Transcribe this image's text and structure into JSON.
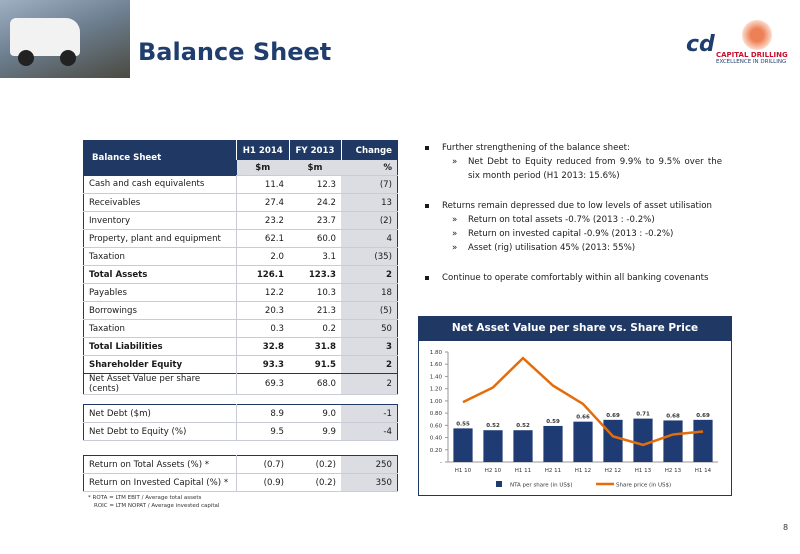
{
  "header": {
    "title": "Balance Sheet",
    "logo_mark": "cd",
    "logo_name": "CAPITAL DRILLING",
    "logo_tagline": "EXCELLENCE IN DRILLING"
  },
  "table": {
    "header": [
      "Balance Sheet",
      "H1 2014",
      "FY 2013",
      "Change"
    ],
    "units": [
      "$m",
      "$m",
      "%"
    ],
    "sections": [
      [
        [
          "Cash and cash equivalents",
          "11.4",
          "12.3",
          "(7)"
        ],
        [
          "Receivables",
          "27.4",
          "24.2",
          "13"
        ],
        [
          "Inventory",
          "23.2",
          "23.7",
          "(2)"
        ],
        [
          "Property, plant and equipment",
          "62.1",
          "60.0",
          "4"
        ],
        [
          "Taxation",
          "2.0",
          "3.1",
          "(35)"
        ],
        [
          "Total Assets",
          "126.1",
          "123.3",
          "2"
        ],
        [
          "Payables",
          "12.2",
          "10.3",
          "18"
        ],
        [
          "Borrowings",
          "20.3",
          "21.3",
          "(5)"
        ],
        [
          "Taxation",
          "0.3",
          "0.2",
          "50"
        ],
        [
          "Total Liabilities",
          "32.8",
          "31.8",
          "3"
        ],
        [
          "Shareholder Equity",
          "93.3",
          "91.5",
          "2"
        ]
      ],
      [
        [
          "Net Asset Value per share (cents)",
          "69.3",
          "68.0",
          "2"
        ]
      ],
      [
        [
          "Net Debt ($m)",
          "8.9",
          "9.0",
          "-1"
        ],
        [
          "Net Debt to Equity (%)",
          "9.5",
          "9.9",
          "-4"
        ]
      ],
      [
        [
          "Return on Total Assets (%) *",
          "(0.7)",
          "(0.2)",
          "250"
        ],
        [
          "Return on Invested Capital (%) *",
          "(0.9)",
          "(0.2)",
          "350"
        ]
      ]
    ],
    "footnotes": [
      "* ROTA = LTM EBIT / Average total assets",
      "ROIC = LTM NOPAT / Average invested capital"
    ]
  },
  "bullets": [
    {
      "text": "Further strengthening of the balance sheet:",
      "subs": [
        "Net Debt to Equity reduced from 9.9% to 9.5% over the six month period (H1 2013: 15.6%)"
      ]
    },
    {
      "text": "Returns remain depressed due to low levels of asset utilisation",
      "subs": [
        "Return on total assets -0.7% (2013 : -0.2%)",
        "Return on invested capital -0.9% (2013 : -0.2%)",
        "Asset (rig) utilisation 45% (2013: 55%)"
      ]
    },
    {
      "text": "Continue to operate comfortably within all banking covenants",
      "subs": []
    }
  ],
  "chart_data": {
    "type": "bar-line",
    "title": "Net Asset Value per share vs. Share Price",
    "categories": [
      "H1 10",
      "H2 10",
      "H1 11",
      "H2 11",
      "H1 12",
      "H2 12",
      "H1 13",
      "H2 13",
      "H1 14"
    ],
    "series": [
      {
        "name": "NTA per share (in US$)",
        "type": "bar",
        "color": "#1f3b73",
        "values": [
          0.55,
          0.52,
          0.52,
          0.59,
          0.66,
          0.69,
          0.71,
          0.68,
          0.69
        ]
      },
      {
        "name": "Share price (in US$)",
        "type": "line",
        "color": "#e46c0a",
        "values": [
          0.98,
          1.22,
          1.7,
          1.25,
          0.95,
          0.42,
          0.28,
          0.45,
          0.5
        ]
      }
    ],
    "ylim": [
      0,
      1.8
    ],
    "yticks": [
      {
        "value": 0,
        "label": "-"
      },
      {
        "value": 0.2,
        "label": "0.20"
      },
      {
        "value": 0.4,
        "label": "0.40"
      },
      {
        "value": 0.6,
        "label": "0.60"
      },
      {
        "value": 0.8,
        "label": "0.80"
      },
      {
        "value": 1,
        "label": "1.00"
      },
      {
        "value": 1.2,
        "label": "1.20"
      },
      {
        "value": 1.4,
        "label": "1.40"
      },
      {
        "value": 1.6,
        "label": "1.60"
      },
      {
        "value": 1.8,
        "label": "1.80"
      }
    ]
  },
  "page_number": "8"
}
